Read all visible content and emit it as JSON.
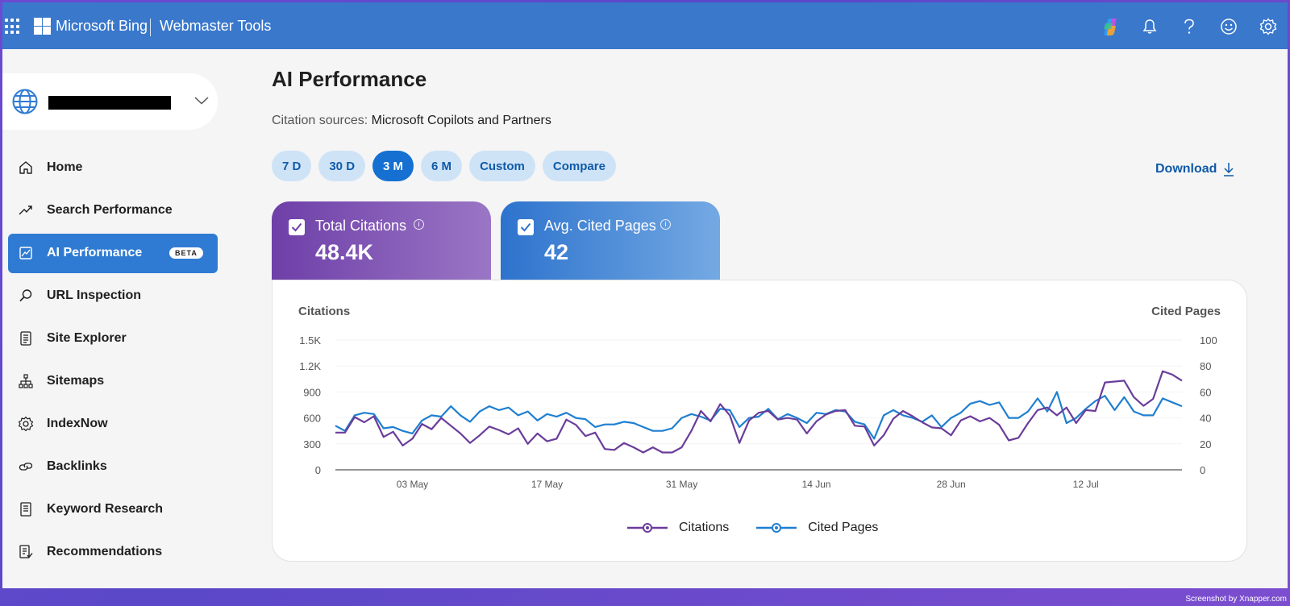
{
  "header": {
    "brand": "Microsoft Bing",
    "product": "Webmaster Tools",
    "icons": [
      "copilot-icon",
      "bell-icon",
      "help-icon",
      "smiley-icon",
      "gear-icon"
    ]
  },
  "sidebar": {
    "site_picker": {
      "icon": "globe-icon",
      "chevron": "chevron-down-icon"
    },
    "items": [
      {
        "label": "Home",
        "icon": "home-icon"
      },
      {
        "label": "Search Performance",
        "icon": "trend-icon"
      },
      {
        "label": "AI Performance",
        "icon": "chart-frame-icon",
        "badge": "BETA",
        "active": true
      },
      {
        "label": "URL Inspection",
        "icon": "search-icon"
      },
      {
        "label": "Site Explorer",
        "icon": "document-list-icon"
      },
      {
        "label": "Sitemaps",
        "icon": "sitemap-icon"
      },
      {
        "label": "IndexNow",
        "icon": "gear-cycle-icon"
      },
      {
        "label": "Backlinks",
        "icon": "link-icon"
      },
      {
        "label": "Keyword Research",
        "icon": "notes-icon"
      },
      {
        "label": "Recommendations",
        "icon": "checklist-icon"
      }
    ]
  },
  "main": {
    "title": "AI Performance",
    "citation_label": "Citation sources:",
    "citation_value": "Microsoft Copilots and Partners",
    "ranges": [
      "7 D",
      "30 D",
      "3 M",
      "6 M",
      "Custom",
      "Compare"
    ],
    "active_range": "3 M",
    "download_label": "Download",
    "cards": [
      {
        "label": "Total Citations",
        "value": "48.4K",
        "checked": true
      },
      {
        "label": "Avg. Cited Pages",
        "value": "42",
        "checked": true
      }
    ]
  },
  "colors": {
    "citations": "#6a3d9a",
    "cited_pages": "#1f7fd0",
    "accent": "#3a78cc"
  },
  "watermark": "Screenshot by Xnapper.com",
  "chart_data": {
    "type": "line",
    "y_left_label": "Citations",
    "y_right_label": "Cited Pages",
    "y_left_ticks": [
      "0",
      "300",
      "600",
      "900",
      "1.2K",
      "1.5K"
    ],
    "y_right_ticks": [
      "0",
      "20",
      "40",
      "60",
      "80",
      "100"
    ],
    "y_left_lim": [
      0,
      1500
    ],
    "y_right_lim": [
      0,
      100
    ],
    "x_ticks": [
      "03 May",
      "17 May",
      "31 May",
      "14 Jun",
      "28 Jun",
      "12 Jul"
    ],
    "x_tick_index": [
      8,
      22,
      36,
      50,
      64,
      78
    ],
    "grid": true,
    "legend_position": "bottom",
    "series": [
      {
        "name": "Citations",
        "axis": "left",
        "values": [
          430,
          430,
          610,
          550,
          620,
          380,
          440,
          280,
          360,
          530,
          470,
          600,
          510,
          420,
          310,
          400,
          500,
          460,
          410,
          480,
          300,
          420,
          330,
          360,
          580,
          520,
          390,
          430,
          240,
          230,
          310,
          260,
          200,
          260,
          200,
          200,
          260,
          450,
          680,
          560,
          760,
          630,
          310,
          570,
          660,
          680,
          580,
          600,
          580,
          420,
          560,
          640,
          680,
          690,
          510,
          500,
          280,
          400,
          590,
          680,
          620,
          550,
          490,
          480,
          400,
          570,
          620,
          560,
          600,
          520,
          340,
          370,
          540,
          690,
          720,
          630,
          720,
          540,
          690,
          680,
          1010,
          1020,
          1030,
          840,
          740,
          820,
          1140,
          1100,
          1030
        ]
      },
      {
        "name": "Cited Pages",
        "axis": "right",
        "values": [
          34,
          30,
          42,
          44,
          43,
          32,
          33,
          30,
          28,
          38,
          42,
          41,
          49,
          42,
          37,
          45,
          49,
          46,
          48,
          42,
          45,
          38,
          43,
          41,
          44,
          40,
          39,
          33,
          35,
          35,
          37,
          36,
          33,
          30,
          30,
          32,
          40,
          43,
          41,
          38,
          47,
          46,
          33,
          40,
          41,
          47,
          39,
          43,
          40,
          36,
          44,
          43,
          46,
          45,
          37,
          35,
          24,
          42,
          46,
          42,
          40,
          37,
          42,
          33,
          40,
          44,
          51,
          53,
          50,
          52,
          40,
          40,
          45,
          55,
          45,
          60,
          36,
          40,
          47,
          53,
          57,
          46,
          56,
          45,
          42,
          42,
          55,
          52,
          49
        ]
      }
    ]
  }
}
